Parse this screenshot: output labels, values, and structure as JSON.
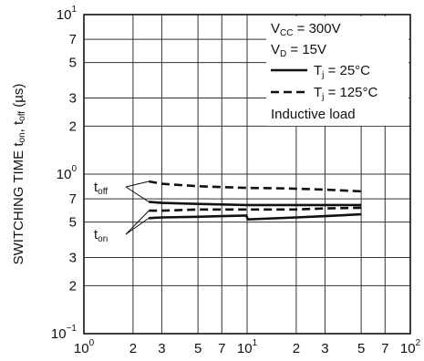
{
  "chart_data": {
    "type": "line",
    "x_scale": "log",
    "y_scale": "log",
    "xlim": [
      1,
      100
    ],
    "ylim": [
      0.1,
      10
    ],
    "grid": true,
    "legend_position": "top-right",
    "ylabel": {
      "text": "SWITCHING TIME  ",
      "t1": "t",
      "s1": "on",
      "sep": ", ",
      "t2": "t",
      "s2": "off",
      "unit": " (µs)"
    },
    "x_ticks": [
      {
        "v": 1,
        "base": "10",
        "exp": "0"
      },
      {
        "v": 2,
        "base": "2",
        "exp": ""
      },
      {
        "v": 3,
        "base": "3",
        "exp": ""
      },
      {
        "v": 5,
        "base": "5",
        "exp": ""
      },
      {
        "v": 7,
        "base": "7",
        "exp": ""
      },
      {
        "v": 10,
        "base": "10",
        "exp": "1"
      },
      {
        "v": 20,
        "base": "2",
        "exp": ""
      },
      {
        "v": 30,
        "base": "3",
        "exp": ""
      },
      {
        "v": 50,
        "base": "5",
        "exp": ""
      },
      {
        "v": 70,
        "base": "7",
        "exp": ""
      },
      {
        "v": 100,
        "base": "10",
        "exp": "2"
      }
    ],
    "y_ticks": [
      {
        "v": 10,
        "base": "10",
        "exp": "1"
      },
      {
        "v": 7,
        "base": "7",
        "exp": ""
      },
      {
        "v": 5,
        "base": "5",
        "exp": ""
      },
      {
        "v": 3,
        "base": "3",
        "exp": ""
      },
      {
        "v": 2,
        "base": "2",
        "exp": ""
      },
      {
        "v": 1,
        "base": "10",
        "exp": "0"
      },
      {
        "v": 0.7,
        "base": "7",
        "exp": ""
      },
      {
        "v": 0.5,
        "base": "5",
        "exp": ""
      },
      {
        "v": 0.3,
        "base": "3",
        "exp": ""
      },
      {
        "v": 0.2,
        "base": "2",
        "exp": ""
      },
      {
        "v": 0.1,
        "base": "10",
        "exp": "−1"
      }
    ],
    "legend": {
      "conditions": [
        {
          "main": "V",
          "sub": "CC",
          "rest": " = 300V"
        },
        {
          "main": "V",
          "sub": "D",
          "rest": " = 15V"
        }
      ],
      "entries": [
        {
          "sym": "T",
          "sub": "j",
          "rest": " = 25°C",
          "style": "solid"
        },
        {
          "sym": "T",
          "sub": "j",
          "rest": " = 125°C",
          "style": "dashed"
        }
      ],
      "note": "Inductive load"
    },
    "series": [
      {
        "label": "t",
        "sub": "off",
        "style": "dashed",
        "x": [
          2.5,
          3,
          5,
          7,
          10,
          15,
          20,
          30,
          50
        ],
        "y": [
          0.9,
          0.87,
          0.84,
          0.83,
          0.82,
          0.815,
          0.81,
          0.8,
          0.78
        ]
      },
      {
        "label": "t",
        "sub": "off",
        "style": "solid",
        "x": [
          2.5,
          3,
          5,
          7,
          10,
          15,
          20,
          30,
          50
        ],
        "y": [
          0.67,
          0.66,
          0.65,
          0.645,
          0.64,
          0.64,
          0.64,
          0.64,
          0.64
        ]
      },
      {
        "label": "t",
        "sub": "on",
        "style": "dashed",
        "x": [
          2.5,
          3,
          5,
          7,
          9.9,
          10.1,
          20,
          30,
          50
        ],
        "y": [
          0.59,
          0.59,
          0.6,
          0.6,
          0.6,
          0.6,
          0.6,
          0.61,
          0.615
        ]
      },
      {
        "label": "t",
        "sub": "on",
        "style": "solid",
        "x": [
          2.5,
          3,
          5,
          7,
          9.9,
          10.1,
          20,
          30,
          50
        ],
        "y": [
          0.53,
          0.535,
          0.54,
          0.545,
          0.55,
          0.52,
          0.535,
          0.545,
          0.56
        ]
      }
    ],
    "annotations": [
      {
        "label": "t",
        "sub": "off",
        "targets": [
          0,
          1
        ]
      },
      {
        "label": "t",
        "sub": "on",
        "targets": [
          2,
          3
        ]
      }
    ]
  }
}
